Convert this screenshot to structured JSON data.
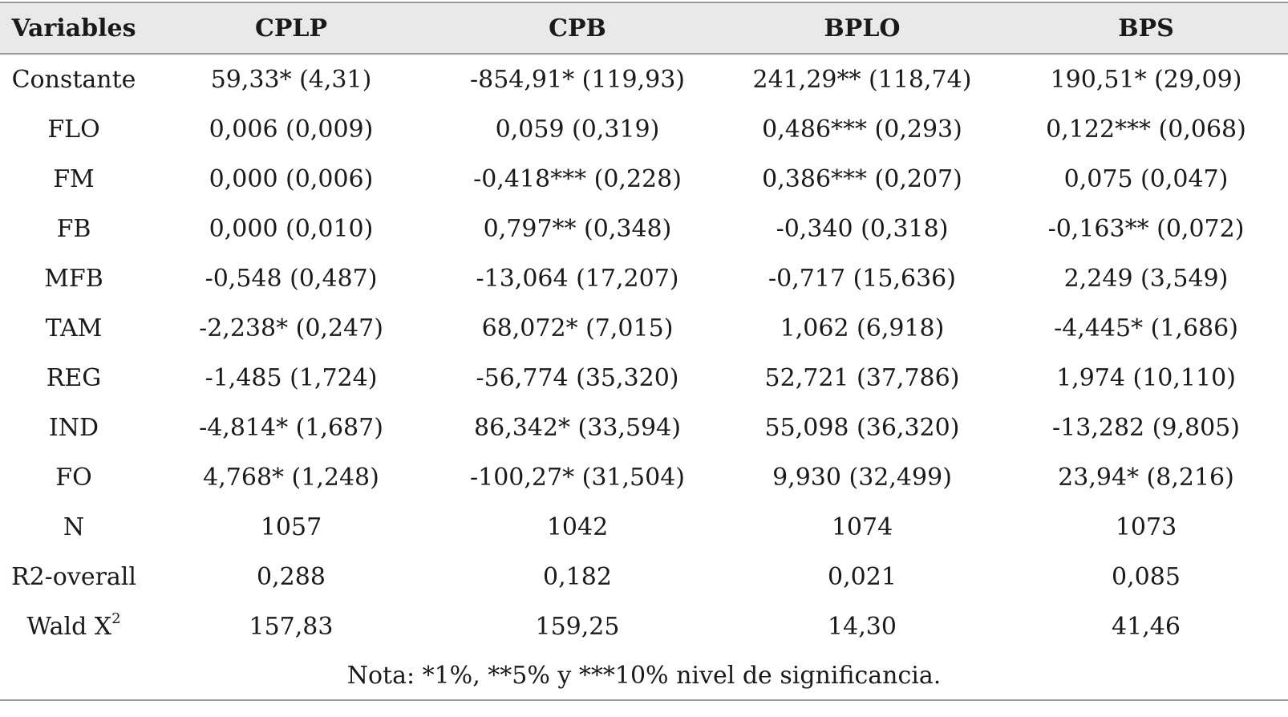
{
  "table": {
    "headers": [
      "Variables",
      "CPLP",
      "CPB",
      "BPLO",
      "BPS"
    ],
    "rows": [
      [
        "Constante",
        "59,33* (4,31)",
        "-854,91* (119,93)",
        "241,29** (118,74)",
        "190,51* (29,09)"
      ],
      [
        "FLO",
        "0,006 (0,009)",
        "0,059 (0,319)",
        "0,486*** (0,293)",
        "0,122*** (0,068)"
      ],
      [
        "FM",
        "0,000 (0,006)",
        "-0,418*** (0,228)",
        "0,386*** (0,207)",
        "0,075 (0,047)"
      ],
      [
        "FB",
        "0,000 (0,010)",
        "0,797** (0,348)",
        "-0,340 (0,318)",
        "-0,163** (0,072)"
      ],
      [
        "MFB",
        "-0,548 (0,487)",
        "-13,064 (17,207)",
        "-0,717 (15,636)",
        "2,249 (3,549)"
      ],
      [
        "TAM",
        "-2,238* (0,247)",
        "68,072* (7,015)",
        "1,062 (6,918)",
        "-4,445* (1,686)"
      ],
      [
        "REG",
        "-1,485 (1,724)",
        "-56,774 (35,320)",
        "52,721 (37,786)",
        "1,974 (10,110)"
      ],
      [
        "IND",
        "-4,814* (1,687)",
        "86,342* (33,594)",
        "55,098 (36,320)",
        "-13,282 (9,805)"
      ],
      [
        "FO",
        "4,768* (1,248)",
        "-100,27* (31,504)",
        "9,930 (32,499)",
        "23,94* (8,216)"
      ],
      [
        "N",
        "1057",
        "1042",
        "1074",
        "1073"
      ],
      [
        "R2-overall",
        "0,288",
        "0,182",
        "0,021",
        "0,085"
      ]
    ],
    "wald": {
      "label": "Wald X",
      "superscript": "2",
      "values": [
        "157,83",
        "159,25",
        "14,30",
        "41,46"
      ]
    },
    "note": "Nota: *1%, **5% y ***10% nivel de significancia."
  }
}
